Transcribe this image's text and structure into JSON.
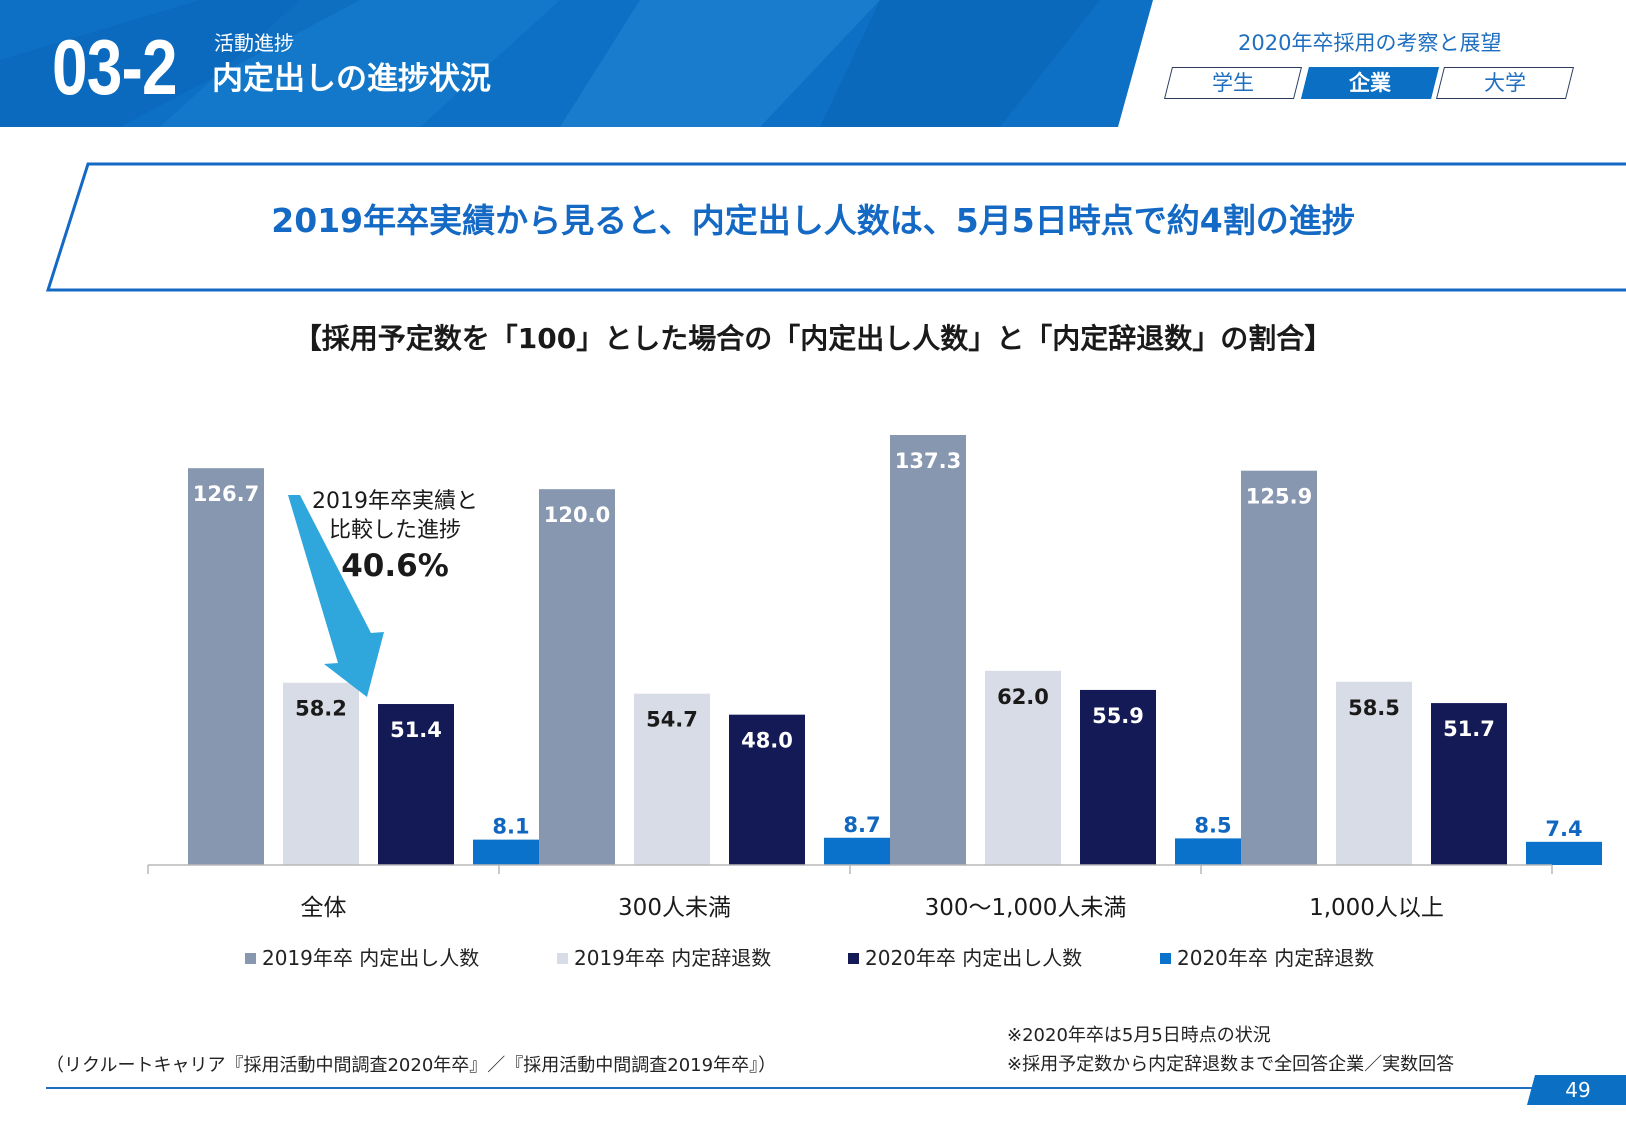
{
  "header": {
    "section_number": "03-2",
    "section_category": "活動進捗",
    "section_title": "内定出しの進捗状況",
    "report_title": "2020年卒採用の考察と展望",
    "tabs": [
      {
        "label": "学生",
        "active": false
      },
      {
        "label": "企業",
        "active": true
      },
      {
        "label": "大学",
        "active": false
      }
    ]
  },
  "headline": "2019年卒実績から見ると、内定出し人数は、5月5日時点で約4割の進捗",
  "callout": {
    "line1": "2019年卒実績と",
    "line2": "比較した進捗",
    "value": "40.6%"
  },
  "chart_data": {
    "type": "bar",
    "title": "【採用予定数を「100」とした場合の「内定出し人数」と「内定辞退数」の割合】",
    "categories": [
      "全体",
      "300人未満",
      "300～1,000人未満",
      "1,000人以上"
    ],
    "series": [
      {
        "name": "2019年卒 内定出し人数",
        "color": "#8797b0",
        "label_color": "#ffffff",
        "values": [
          126.7,
          120.0,
          137.3,
          125.9
        ]
      },
      {
        "name": "2019年卒 内定辞退数",
        "color": "#d8dce6",
        "label_color": "#1a1a1a",
        "values": [
          58.2,
          54.7,
          62.0,
          58.5
        ]
      },
      {
        "name": "2020年卒 内定出し人数",
        "color": "#141a55",
        "label_color": "#ffffff",
        "values": [
          51.4,
          48.0,
          55.9,
          51.7
        ]
      },
      {
        "name": "2020年卒 内定辞退数",
        "color": "#0b72cc",
        "label_color": "#1167c0",
        "values": [
          8.1,
          8.7,
          8.5,
          7.4
        ]
      }
    ],
    "ylim": [
      0,
      137.3
    ],
    "legend_position": "bottom",
    "grid": false
  },
  "notes": {
    "note1": "※2020年卒は5月5日時点の状況",
    "note2": "※採用予定数から内定辞退数まで全回答企業／実数回答",
    "source": "（リクルートキャリア『採用活動中間調査2020年卒』／『採用活動中間調査2019年卒』）"
  },
  "page_number": "49",
  "colors": {
    "brand_blue": "#1469c4",
    "header_blue": "#0b6fc4",
    "arrow_blue": "#2fa6dc"
  }
}
